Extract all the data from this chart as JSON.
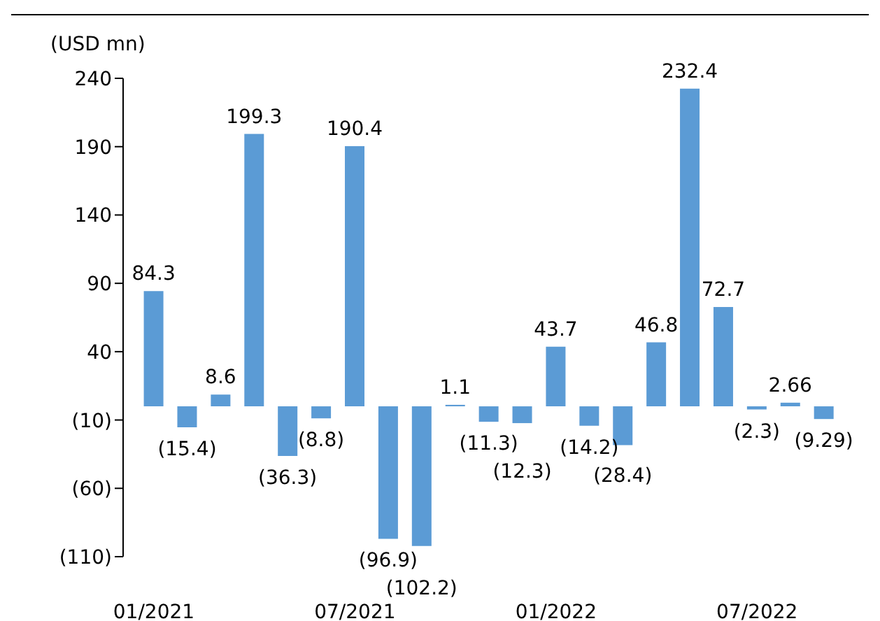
{
  "chart_data": {
    "type": "bar",
    "ylabel": "(USD mn)",
    "categories": [
      "01/2021",
      null,
      null,
      null,
      null,
      null,
      "07/2021",
      null,
      null,
      null,
      null,
      null,
      "01/2022",
      null,
      null,
      null,
      null,
      null,
      "07/2022",
      null,
      null
    ],
    "values": [
      84.3,
      -15.4,
      8.6,
      199.3,
      -36.3,
      -8.8,
      190.4,
      -96.9,
      -102.2,
      1.1,
      -11.3,
      -12.3,
      43.7,
      -14.2,
      -28.4,
      46.8,
      232.4,
      72.7,
      -2.3,
      2.66,
      -9.29
    ],
    "value_labels": [
      "84.3",
      "(15.4)",
      "8.6",
      "199.3",
      "(36.3)",
      "(8.8)",
      "190.4",
      "(96.9)",
      "(102.2)",
      "1.1",
      "(11.3)",
      "(12.3)",
      "43.7",
      "(14.2)",
      "(28.4)",
      "46.8",
      "232.4",
      "72.7",
      "(2.3)",
      "2.66",
      "(9.29)"
    ],
    "color": "#5b9bd5",
    "ylim": [
      -110,
      240
    ],
    "yticks": [
      {
        "value": -110,
        "label": "(110)"
      },
      {
        "value": -60,
        "label": "(60)"
      },
      {
        "value": -10,
        "label": "(10)"
      },
      40,
      90,
      140,
      190,
      240
    ],
    "grid": false,
    "legend": false
  }
}
